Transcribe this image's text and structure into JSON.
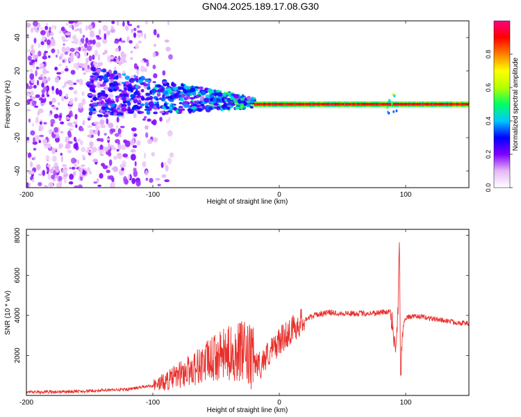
{
  "title": "GN04.2025.189.17.08.G30",
  "colors": {
    "signal_line": "#e8302c",
    "purple": "#7a1fe0",
    "axis": "#000000"
  },
  "chart_data": [
    {
      "type": "heatmap",
      "xlabel": "Height of straight line (km)",
      "ylabel": "Frequency (Hz)",
      "xlim": [
        -200,
        150
      ],
      "ylim": [
        -50,
        50
      ],
      "xticks": [
        -200,
        -100,
        0,
        100
      ],
      "yticks": [
        -40,
        -20,
        0,
        20,
        40
      ],
      "colorbar": {
        "label": "Normalized spectral amplitude",
        "range": [
          0,
          1
        ],
        "ticks": [
          0.0,
          0.2,
          0.4,
          0.6,
          0.8
        ],
        "colors": [
          "#ffffff",
          "#e6b8f5",
          "#8000ff",
          "#0000ff",
          "#00c8ff",
          "#00ff64",
          "#b4ff00",
          "#ffff00",
          "#ff8000",
          "#ff0000",
          "#ff0080"
        ]
      },
      "features": [
        {
          "description": "scattered purple blobs",
          "x_range": [
            -200,
            -100
          ],
          "freq_range": [
            -50,
            50
          ],
          "amplitude": 0.15
        },
        {
          "description": "broadening noisy band",
          "x_range": [
            -150,
            -20
          ],
          "freq_range": [
            -8,
            16
          ],
          "amplitude": 0.35
        },
        {
          "description": "narrow carrier line",
          "x_range": [
            -20,
            150
          ],
          "freq_center": 0,
          "amplitude": 0.95
        }
      ]
    },
    {
      "type": "line",
      "xlabel": "Height of straight line (km)",
      "ylabel": "SNR (10 * v/v)",
      "xlim": [
        -200,
        150
      ],
      "ylim": [
        0,
        8300
      ],
      "xticks": [
        -200,
        -100,
        0,
        100
      ],
      "yticks": [
        2000,
        4000,
        6000,
        8000
      ],
      "series": [
        {
          "x": [
            -200,
            -180,
            -160,
            -140,
            -120,
            -110,
            -100,
            -90,
            -80,
            -70,
            -60,
            -50,
            -40,
            -30,
            -20,
            -15,
            -10,
            -5,
            0,
            10,
            20,
            30,
            40,
            50,
            60,
            70,
            80,
            88,
            90,
            92,
            94,
            95,
            96,
            98,
            100,
            110,
            120,
            130,
            140,
            150
          ],
          "y": [
            150,
            180,
            200,
            250,
            300,
            400,
            500,
            700,
            1000,
            1300,
            1600,
            1900,
            2100,
            2200,
            1700,
            1500,
            2000,
            2300,
            2700,
            3300,
            3800,
            4050,
            4150,
            4100,
            4100,
            4100,
            4150,
            4200,
            3500,
            2000,
            4500,
            8000,
            1000,
            3500,
            3900,
            3950,
            3850,
            3750,
            3650,
            3600
          ]
        }
      ]
    }
  ]
}
